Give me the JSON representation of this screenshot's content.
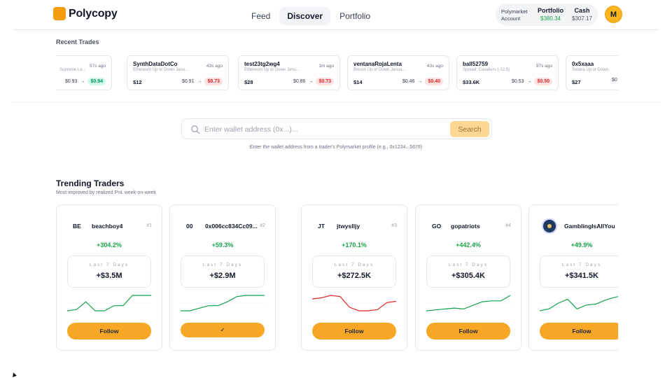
{
  "app": {
    "name": "Polycopy"
  },
  "nav": [
    {
      "label": "Feed",
      "active": false
    },
    {
      "label": "Discover",
      "active": true
    },
    {
      "label": "Portfolio",
      "active": false
    }
  ],
  "account": {
    "label": "Polymarket Account",
    "portfolio_label": "Portfolio",
    "portfolio_value": "$380.34",
    "cash_label": "Cash",
    "cash_value": "$307.17",
    "avatar_initial": "M"
  },
  "recent_trades": {
    "title": "Recent Trades",
    "items": [
      {
        "user": "",
        "time": "57s ago",
        "market": "Supreme Le...",
        "amount": "",
        "from": "$0.93",
        "to": "$0.94",
        "direction": "up"
      },
      {
        "user": "SynthDataDotCo",
        "time": "43s ago",
        "market": "Ethereum Up or Down Janu...",
        "amount": "$12",
        "from": "$0.91",
        "to": "$0.73",
        "direction": "down"
      },
      {
        "user": "test23tg2wg4",
        "time": "1m ago",
        "market": "Ethereum Up or Down Janu...",
        "amount": "$28",
        "from": "$0.86",
        "to": "$0.73",
        "direction": "down"
      },
      {
        "user": "ventanaRojaLenta",
        "time": "43s ago",
        "market": "Bitcoin Up or Down Janua...",
        "amount": "$14",
        "from": "$0.46",
        "to": "$0.40",
        "direction": "down"
      },
      {
        "user": "ball52759",
        "time": "57s ago",
        "market": "Spread: Cavaliers (-12.5)",
        "amount": "$33.6K",
        "from": "$0.53",
        "to": "$0.50",
        "direction": "down"
      },
      {
        "user": "0x5xaaa",
        "time": "",
        "market": "Solana Up or Down",
        "amount": "$27",
        "from": "$0",
        "to": "",
        "direction": ""
      }
    ]
  },
  "search": {
    "placeholder": "Enter wallet address (0x...)...",
    "button_label": "Search",
    "hint": "Enter the wallet address from a trader's Polymarket profile (e.g., 0x1234...5678)"
  },
  "trending": {
    "title": "Trending Traders",
    "subtitle": "Most improved by realized PnL week-on-week",
    "period_label": "Last 7 Days",
    "traders": [
      {
        "initials": "BE",
        "name": "beachboy4",
        "rank": "#1",
        "change": "+304.2%",
        "pnl": "+$3.5M",
        "button": "Follow",
        "following": false,
        "trend": "up",
        "spark": [
          2,
          3,
          9,
          2,
          2,
          6,
          6,
          14,
          14,
          14
        ]
      },
      {
        "initials": "00",
        "name": "0x006cc834Cc09...",
        "rank": "#2",
        "change": "+59.3%",
        "pnl": "+$2.9M",
        "button": "✓",
        "following": true,
        "trend": "up",
        "spark": [
          1,
          1,
          3,
          5,
          5,
          8,
          12,
          13,
          13,
          13
        ]
      },
      {
        "initials": "JT",
        "name": "jtwyslljy",
        "rank": "#3",
        "change": "+170.1%",
        "pnl": "+$272.5K",
        "button": "Follow",
        "following": false,
        "trend": "down",
        "spark": [
          12,
          13,
          15,
          14,
          5,
          2,
          2,
          3,
          9,
          10
        ]
      },
      {
        "initials": "GO",
        "name": "gopatriots",
        "rank": "#4",
        "change": "+442.4%",
        "pnl": "+$305.4K",
        "button": "Follow",
        "following": false,
        "trend": "up",
        "spark": [
          1,
          2,
          3,
          4,
          3,
          7,
          11,
          12,
          12,
          18
        ]
      },
      {
        "initials": "",
        "name": "GamblingIsAllYou",
        "rank": "",
        "change": "+49.9%",
        "pnl": "+$341.5K",
        "button": "Follow",
        "following": false,
        "trend": "up",
        "spark": [
          2,
          4,
          10,
          14,
          4,
          8,
          9,
          13,
          16,
          18
        ],
        "has_logo": true
      }
    ]
  },
  "colors": {
    "accent": "#f7a625",
    "positive": "#16a34a",
    "negative": "#dc2626",
    "spark_up": "#16a34a",
    "spark_down": "#dc2626"
  }
}
